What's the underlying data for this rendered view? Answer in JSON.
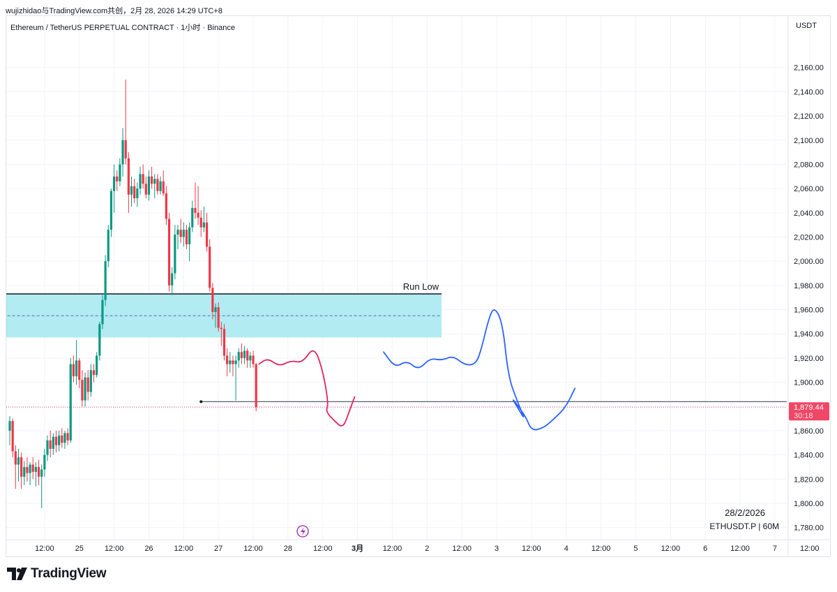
{
  "header": {
    "share_line": "wujizhidao与TradingView.com共创，2月 28, 2026 14:29 UTC+8"
  },
  "chart_header": {
    "symbol_title": "Ethereum / TetherUS PERPETUAL CONTRACT · 1小时 · Binance",
    "currency": "USDT"
  },
  "footer": {
    "date": "28/2/2026",
    "symbol": "ETHUSDT.P | 60M",
    "brand": "TradingView"
  },
  "chart_data": {
    "type": "candlestick",
    "title": "Ethereum / TetherUS PERPETUAL CONTRACT · 1小时 · Binance",
    "interval": "1小时",
    "exchange": "Binance",
    "quote_currency": "USDT",
    "ylim": [
      1770,
      2170
    ],
    "y_ticks": [
      1780,
      1800,
      1820,
      1840,
      1860,
      1880,
      1900,
      1920,
      1940,
      1960,
      1980,
      2000,
      2020,
      2040,
      2060,
      2080,
      2100,
      2120,
      2140,
      2160
    ],
    "y_tick_labels": [
      "1,780.00",
      "1,800.00",
      "1,820.00",
      "1,840.00",
      "1,860.00",
      "1,880.00",
      "1,900.00",
      "1,920.00",
      "1,940.00",
      "1,960.00",
      "1,980.00",
      "2,000.00",
      "2,020.00",
      "2,040.00",
      "2,060.00",
      "2,080.00",
      "2,100.00",
      "2,120.00",
      "2,140.00",
      "2,160.00"
    ],
    "x_ticks": [
      {
        "t": 12,
        "label": "12:00"
      },
      {
        "t": 24,
        "label": "25"
      },
      {
        "t": 36,
        "label": "12:00"
      },
      {
        "t": 48,
        "label": "26"
      },
      {
        "t": 60,
        "label": "12:00"
      },
      {
        "t": 72,
        "label": "27"
      },
      {
        "t": 84,
        "label": "12:00"
      },
      {
        "t": 96,
        "label": "28"
      },
      {
        "t": 108,
        "label": "12:00"
      },
      {
        "t": 120,
        "label": "3月"
      },
      {
        "t": 132,
        "label": "12:00"
      },
      {
        "t": 144,
        "label": "2"
      },
      {
        "t": 156,
        "label": "12:00"
      },
      {
        "t": 168,
        "label": "3"
      },
      {
        "t": 180,
        "label": "12:00"
      },
      {
        "t": 192,
        "label": "4"
      },
      {
        "t": 204,
        "label": "12:00"
      },
      {
        "t": 216,
        "label": "5"
      },
      {
        "t": 228,
        "label": "12:00"
      },
      {
        "t": 240,
        "label": "6"
      },
      {
        "t": 252,
        "label": "12:00"
      },
      {
        "t": 264,
        "label": "7"
      },
      {
        "t": 276,
        "label": "12:00"
      }
    ],
    "bold_x_ticks": [
      "3月"
    ],
    "last_price": {
      "value": 1879.44,
      "label": "1,879.44",
      "countdown": "30:18"
    },
    "candles": [
      {
        "t": 0,
        "o": 1860,
        "h": 1872,
        "l": 1848,
        "c": 1868
      },
      {
        "t": 1,
        "o": 1868,
        "h": 1870,
        "l": 1838,
        "c": 1843
      },
      {
        "t": 2,
        "o": 1843,
        "h": 1848,
        "l": 1812,
        "c": 1832
      },
      {
        "t": 3,
        "o": 1832,
        "h": 1845,
        "l": 1818,
        "c": 1838
      },
      {
        "t": 4,
        "o": 1838,
        "h": 1842,
        "l": 1812,
        "c": 1822
      },
      {
        "t": 5,
        "o": 1822,
        "h": 1835,
        "l": 1815,
        "c": 1830
      },
      {
        "t": 6,
        "o": 1830,
        "h": 1838,
        "l": 1818,
        "c": 1825
      },
      {
        "t": 7,
        "o": 1825,
        "h": 1834,
        "l": 1815,
        "c": 1832
      },
      {
        "t": 8,
        "o": 1832,
        "h": 1838,
        "l": 1820,
        "c": 1826
      },
      {
        "t": 9,
        "o": 1826,
        "h": 1834,
        "l": 1814,
        "c": 1830
      },
      {
        "t": 10,
        "o": 1830,
        "h": 1836,
        "l": 1815,
        "c": 1822
      },
      {
        "t": 11,
        "o": 1822,
        "h": 1832,
        "l": 1796,
        "c": 1828
      },
      {
        "t": 12,
        "o": 1828,
        "h": 1845,
        "l": 1822,
        "c": 1840
      },
      {
        "t": 13,
        "o": 1840,
        "h": 1856,
        "l": 1835,
        "c": 1852
      },
      {
        "t": 14,
        "o": 1852,
        "h": 1860,
        "l": 1838,
        "c": 1845
      },
      {
        "t": 15,
        "o": 1845,
        "h": 1858,
        "l": 1840,
        "c": 1855
      },
      {
        "t": 16,
        "o": 1855,
        "h": 1860,
        "l": 1842,
        "c": 1848
      },
      {
        "t": 17,
        "o": 1848,
        "h": 1860,
        "l": 1843,
        "c": 1856
      },
      {
        "t": 18,
        "o": 1856,
        "h": 1862,
        "l": 1846,
        "c": 1850
      },
      {
        "t": 19,
        "o": 1850,
        "h": 1860,
        "l": 1845,
        "c": 1858
      },
      {
        "t": 20,
        "o": 1858,
        "h": 1862,
        "l": 1848,
        "c": 1852
      },
      {
        "t": 21,
        "o": 1852,
        "h": 1920,
        "l": 1850,
        "c": 1915
      },
      {
        "t": 22,
        "o": 1915,
        "h": 1922,
        "l": 1900,
        "c": 1905
      },
      {
        "t": 23,
        "o": 1905,
        "h": 1935,
        "l": 1898,
        "c": 1918
      },
      {
        "t": 24,
        "o": 1918,
        "h": 1920,
        "l": 1895,
        "c": 1902
      },
      {
        "t": 25,
        "o": 1902,
        "h": 1910,
        "l": 1880,
        "c": 1885
      },
      {
        "t": 26,
        "o": 1885,
        "h": 1908,
        "l": 1880,
        "c": 1904
      },
      {
        "t": 27,
        "o": 1904,
        "h": 1910,
        "l": 1885,
        "c": 1892
      },
      {
        "t": 28,
        "o": 1892,
        "h": 1915,
        "l": 1888,
        "c": 1910
      },
      {
        "t": 29,
        "o": 1910,
        "h": 1915,
        "l": 1900,
        "c": 1906
      },
      {
        "t": 30,
        "o": 1906,
        "h": 1925,
        "l": 1904,
        "c": 1922
      },
      {
        "t": 31,
        "o": 1922,
        "h": 1950,
        "l": 1918,
        "c": 1948
      },
      {
        "t": 32,
        "o": 1948,
        "h": 1972,
        "l": 1944,
        "c": 1968
      },
      {
        "t": 33,
        "o": 1968,
        "h": 2005,
        "l": 1963,
        "c": 2000
      },
      {
        "t": 34,
        "o": 2000,
        "h": 2030,
        "l": 1995,
        "c": 2026
      },
      {
        "t": 35,
        "o": 2026,
        "h": 2060,
        "l": 2020,
        "c": 2058
      },
      {
        "t": 36,
        "o": 2058,
        "h": 2080,
        "l": 2040,
        "c": 2070
      },
      {
        "t": 37,
        "o": 2070,
        "h": 2075,
        "l": 2058,
        "c": 2066
      },
      {
        "t": 38,
        "o": 2066,
        "h": 2085,
        "l": 2062,
        "c": 2080
      },
      {
        "t": 39,
        "o": 2080,
        "h": 2110,
        "l": 2070,
        "c": 2100
      },
      {
        "t": 40,
        "o": 2100,
        "h": 2150,
        "l": 2080,
        "c": 2085
      },
      {
        "t": 41,
        "o": 2085,
        "h": 2090,
        "l": 2040,
        "c": 2055
      },
      {
        "t": 42,
        "o": 2055,
        "h": 2070,
        "l": 2045,
        "c": 2062
      },
      {
        "t": 43,
        "o": 2062,
        "h": 2068,
        "l": 2048,
        "c": 2052
      },
      {
        "t": 44,
        "o": 2052,
        "h": 2065,
        "l": 2045,
        "c": 2060
      },
      {
        "t": 45,
        "o": 2060,
        "h": 2078,
        "l": 2055,
        "c": 2072
      },
      {
        "t": 46,
        "o": 2072,
        "h": 2080,
        "l": 2060,
        "c": 2064
      },
      {
        "t": 47,
        "o": 2064,
        "h": 2070,
        "l": 2052,
        "c": 2055
      },
      {
        "t": 48,
        "o": 2055,
        "h": 2075,
        "l": 2050,
        "c": 2070
      },
      {
        "t": 49,
        "o": 2070,
        "h": 2078,
        "l": 2060,
        "c": 2064
      },
      {
        "t": 50,
        "o": 2064,
        "h": 2072,
        "l": 2052,
        "c": 2068
      },
      {
        "t": 51,
        "o": 2068,
        "h": 2072,
        "l": 2055,
        "c": 2058
      },
      {
        "t": 52,
        "o": 2058,
        "h": 2070,
        "l": 2055,
        "c": 2066
      },
      {
        "t": 53,
        "o": 2066,
        "h": 2075,
        "l": 2054,
        "c": 2056
      },
      {
        "t": 54,
        "o": 2056,
        "h": 2062,
        "l": 2030,
        "c": 2035
      },
      {
        "t": 55,
        "o": 2035,
        "h": 2040,
        "l": 1975,
        "c": 1980
      },
      {
        "t": 56,
        "o": 1980,
        "h": 1995,
        "l": 1972,
        "c": 1990
      },
      {
        "t": 57,
        "o": 1990,
        "h": 2030,
        "l": 1985,
        "c": 2022
      },
      {
        "t": 58,
        "o": 2022,
        "h": 2030,
        "l": 2010,
        "c": 2026
      },
      {
        "t": 59,
        "o": 2026,
        "h": 2035,
        "l": 2015,
        "c": 2020
      },
      {
        "t": 60,
        "o": 2020,
        "h": 2032,
        "l": 2012,
        "c": 2026
      },
      {
        "t": 61,
        "o": 2026,
        "h": 2030,
        "l": 2010,
        "c": 2014
      },
      {
        "t": 62,
        "o": 2014,
        "h": 2032,
        "l": 2000,
        "c": 2028
      },
      {
        "t": 63,
        "o": 2028,
        "h": 2050,
        "l": 2024,
        "c": 2044
      },
      {
        "t": 64,
        "o": 2044,
        "h": 2065,
        "l": 2035,
        "c": 2040
      },
      {
        "t": 65,
        "o": 2040,
        "h": 2062,
        "l": 2030,
        "c": 2036
      },
      {
        "t": 66,
        "o": 2036,
        "h": 2042,
        "l": 2020,
        "c": 2028
      },
      {
        "t": 67,
        "o": 2028,
        "h": 2045,
        "l": 2024,
        "c": 2032
      },
      {
        "t": 68,
        "o": 2032,
        "h": 2040,
        "l": 2008,
        "c": 2012
      },
      {
        "t": 69,
        "o": 2012,
        "h": 2018,
        "l": 1975,
        "c": 1978
      },
      {
        "t": 70,
        "o": 1978,
        "h": 1982,
        "l": 1952,
        "c": 1958
      },
      {
        "t": 71,
        "o": 1958,
        "h": 1965,
        "l": 1945,
        "c": 1962
      },
      {
        "t": 72,
        "o": 1962,
        "h": 1966,
        "l": 1942,
        "c": 1945
      },
      {
        "t": 73,
        "o": 1945,
        "h": 1950,
        "l": 1930,
        "c": 1944
      },
      {
        "t": 74,
        "o": 1944,
        "h": 1948,
        "l": 1918,
        "c": 1922
      },
      {
        "t": 75,
        "o": 1922,
        "h": 1928,
        "l": 1905,
        "c": 1915
      },
      {
        "t": 76,
        "o": 1915,
        "h": 1925,
        "l": 1908,
        "c": 1918
      },
      {
        "t": 77,
        "o": 1918,
        "h": 1922,
        "l": 1905,
        "c": 1915
      },
      {
        "t": 78,
        "o": 1915,
        "h": 1922,
        "l": 1885,
        "c": 1918
      },
      {
        "t": 79,
        "o": 1918,
        "h": 1928,
        "l": 1912,
        "c": 1925
      },
      {
        "t": 80,
        "o": 1925,
        "h": 1932,
        "l": 1915,
        "c": 1920
      },
      {
        "t": 81,
        "o": 1920,
        "h": 1930,
        "l": 1915,
        "c": 1926
      },
      {
        "t": 82,
        "o": 1926,
        "h": 1928,
        "l": 1912,
        "c": 1918
      },
      {
        "t": 83,
        "o": 1918,
        "h": 1925,
        "l": 1912,
        "c": 1922
      },
      {
        "t": 84,
        "o": 1922,
        "h": 1926,
        "l": 1912,
        "c": 1915
      },
      {
        "t": 85,
        "o": 1915,
        "h": 1916,
        "l": 1876,
        "c": 1879.44
      }
    ],
    "annotations": {
      "zone": {
        "top": 1973,
        "bottom": 1937,
        "mid": 1955,
        "t_start": -48,
        "t_end": 149,
        "color": "#b2ebf2",
        "label": "Run Low"
      },
      "support_line": {
        "value": 1884,
        "t_start": 66
      },
      "price_line": {
        "value": 1879.44,
        "color": "#ef4766"
      },
      "path_red": {
        "color": "#e0245e",
        "points": [
          [
            86,
            1915
          ],
          [
            89,
            1920
          ],
          [
            93,
            1913
          ],
          [
            97,
            1918
          ],
          [
            101,
            1916
          ],
          [
            105,
            1930
          ],
          [
            108,
            1910
          ],
          [
            110,
            1882
          ],
          [
            109,
            1876
          ],
          [
            112,
            1868
          ],
          [
            115,
            1862
          ],
          [
            117,
            1875
          ],
          [
            119,
            1888
          ]
        ]
      },
      "path_blue": {
        "color": "#2962ff",
        "points": [
          [
            129,
            1925
          ],
          [
            133,
            1912
          ],
          [
            137,
            1918
          ],
          [
            141,
            1910
          ],
          [
            145,
            1920
          ],
          [
            149,
            1918
          ],
          [
            153,
            1922
          ],
          [
            157,
            1914
          ],
          [
            161,
            1915
          ],
          [
            163,
            1930
          ],
          [
            165,
            1950
          ],
          [
            167,
            1963
          ],
          [
            170,
            1950
          ],
          [
            172,
            1905
          ],
          [
            175,
            1885
          ],
          [
            178,
            1868
          ],
          [
            175,
            1880
          ],
          [
            173,
            1888
          ],
          [
            178,
            1872
          ],
          [
            180,
            1860
          ],
          [
            184,
            1862
          ],
          [
            188,
            1870
          ],
          [
            192,
            1880
          ],
          [
            195,
            1895
          ]
        ]
      }
    },
    "colors": {
      "up": "#089981",
      "down": "#f23645",
      "zone": "#b2ebf2",
      "grid": "#f0f3fa"
    }
  }
}
